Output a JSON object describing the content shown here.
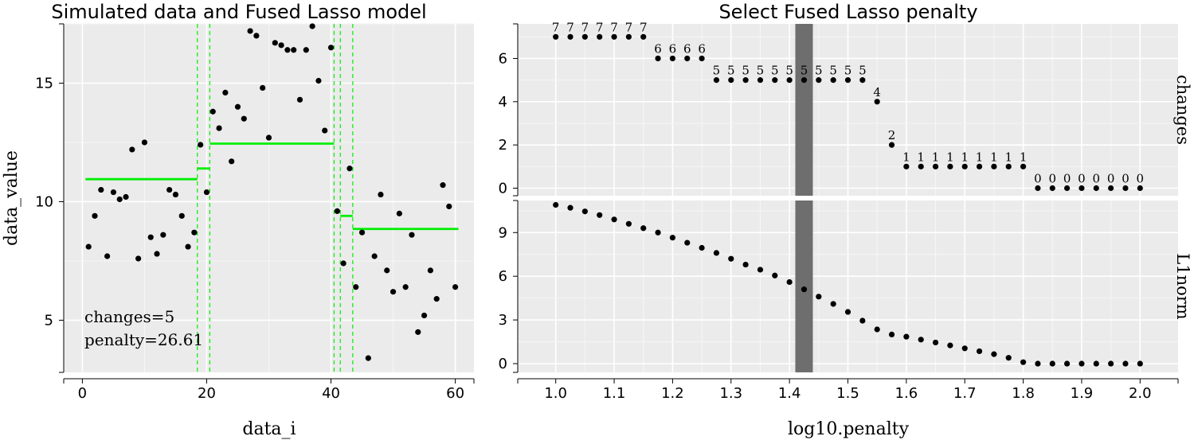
{
  "left_chart": {
    "title": "Simulated data and Fused Lasso model",
    "xlabel": "data_i",
    "ylabel": "data_value",
    "x_ticks": [
      0,
      20,
      40,
      60
    ],
    "y_ticks": [
      5,
      10,
      15
    ],
    "annotation_changes": "changes=5",
    "annotation_penalty": "penalty=26.61"
  },
  "right_chart": {
    "title": "Select Fused Lasso penalty",
    "xlabel": "log10.penalty",
    "x_ticks": [
      "1.0",
      "1.1",
      "1.2",
      "1.3",
      "1.4",
      "1.5",
      "1.6",
      "1.7",
      "1.8",
      "1.9",
      "2.0"
    ],
    "top_facet_label": "changes",
    "bottom_facet_label": "L1norm",
    "top_y_ticks": [
      0,
      2,
      4,
      6
    ],
    "bottom_y_ticks": [
      0,
      3,
      6,
      9
    ]
  },
  "colors": {
    "panel_bg": "#ebebeb",
    "grid_major": "#ffffff",
    "model_line": "#00ee00",
    "points": "#000000",
    "selection_band": "#6e6e6e"
  },
  "chart_data": [
    {
      "type": "scatter",
      "title": "Simulated data and Fused Lasso model",
      "xlabel": "data_i",
      "ylabel": "data_value",
      "xlim": [
        -3,
        63
      ],
      "ylim": [
        2.8,
        17.5
      ],
      "series": [
        {
          "name": "data",
          "x": [
            1,
            2,
            3,
            4,
            5,
            6,
            7,
            8,
            9,
            10,
            11,
            12,
            13,
            14,
            15,
            16,
            17,
            18,
            19,
            20,
            21,
            22,
            23,
            24,
            25,
            26,
            27,
            28,
            29,
            30,
            31,
            32,
            33,
            34,
            35,
            36,
            37,
            38,
            39,
            40,
            41,
            42,
            43,
            44,
            45,
            46,
            47,
            48,
            49,
            50,
            51,
            52,
            53,
            54,
            55,
            56,
            57,
            58,
            59,
            60
          ],
          "y": [
            8.1,
            9.4,
            10.5,
            7.7,
            10.4,
            10.1,
            10.2,
            12.2,
            7.6,
            12.5,
            8.5,
            7.8,
            8.6,
            10.5,
            10.3,
            9.4,
            8.1,
            8.7,
            12.4,
            10.4,
            13.8,
            13.1,
            14.6,
            11.7,
            14.0,
            13.5,
            17.2,
            17.0,
            14.8,
            12.7,
            16.7,
            16.6,
            16.4,
            16.4,
            14.3,
            16.4,
            17.4,
            15.1,
            13.0,
            16.5,
            9.6,
            7.4,
            11.4,
            6.4,
            8.7,
            3.4,
            7.7,
            10.3,
            7.1,
            6.2,
            9.5,
            6.4,
            8.6,
            4.5,
            5.2,
            7.1,
            5.9,
            10.7,
            9.8,
            6.4
          ]
        }
      ],
      "segments": [
        {
          "x_start": 0.5,
          "x_end": 18.5,
          "value": 10.95
        },
        {
          "x_start": 18.5,
          "x_end": 20.5,
          "value": 11.4
        },
        {
          "x_start": 20.5,
          "x_end": 40.5,
          "value": 12.45
        },
        {
          "x_start": 40.5,
          "x_end": 41.5,
          "value": 9.6
        },
        {
          "x_start": 41.5,
          "x_end": 43.5,
          "value": 9.4
        },
        {
          "x_start": 43.5,
          "x_end": 60.5,
          "value": 8.85
        }
      ],
      "changepoints": [
        18.5,
        20.5,
        40.5,
        41.5,
        43.5
      ],
      "changes": 5,
      "penalty": 26.61
    },
    {
      "type": "scatter",
      "title": "Select Fused Lasso penalty",
      "xlabel": "log10.penalty",
      "facet": "changes",
      "xlim": [
        0.935,
        2.065
      ],
      "ylim": [
        -0.35,
        7.6
      ],
      "x": [
        1.0,
        1.025,
        1.05,
        1.075,
        1.1,
        1.125,
        1.15,
        1.175,
        1.2,
        1.225,
        1.25,
        1.275,
        1.3,
        1.325,
        1.35,
        1.375,
        1.4,
        1.425,
        1.45,
        1.475,
        1.5,
        1.525,
        1.55,
        1.575,
        1.6,
        1.625,
        1.65,
        1.675,
        1.7,
        1.725,
        1.75,
        1.775,
        1.8,
        1.825,
        1.85,
        1.875,
        1.9,
        1.925,
        1.95,
        1.975,
        2.0
      ],
      "values": [
        7,
        7,
        7,
        7,
        7,
        7,
        7,
        6,
        6,
        6,
        6,
        5,
        5,
        5,
        5,
        5,
        5,
        5,
        5,
        5,
        5,
        5,
        4,
        2,
        1,
        1,
        1,
        1,
        1,
        1,
        1,
        1,
        1,
        0,
        0,
        0,
        0,
        0,
        0,
        0,
        0
      ],
      "labeled_x": [
        1.0,
        1.025,
        1.05,
        1.075,
        1.1,
        1.125,
        1.15,
        1.175,
        1.2,
        1.225,
        1.25,
        1.275,
        1.3,
        1.325,
        1.35,
        1.375,
        1.4,
        1.425,
        1.45,
        1.475,
        1.5,
        1.525,
        1.55,
        1.575,
        1.6,
        1.625,
        1.65,
        1.675,
        1.7,
        1.725,
        1.75,
        1.775,
        1.8,
        1.825,
        1.85,
        1.875,
        1.9,
        1.925,
        1.95,
        1.975,
        2.0
      ],
      "selected_log10_penalty": 1.425,
      "selected_band": [
        1.41,
        1.44
      ]
    },
    {
      "type": "scatter",
      "title": "Select Fused Lasso penalty",
      "xlabel": "log10.penalty",
      "facet": "L1norm",
      "xlim": [
        0.935,
        2.065
      ],
      "ylim": [
        -0.6,
        11.2
      ],
      "x": [
        1.0,
        1.025,
        1.05,
        1.075,
        1.1,
        1.125,
        1.15,
        1.175,
        1.2,
        1.225,
        1.25,
        1.275,
        1.3,
        1.325,
        1.35,
        1.375,
        1.4,
        1.425,
        1.45,
        1.475,
        1.5,
        1.525,
        1.55,
        1.575,
        1.6,
        1.625,
        1.65,
        1.675,
        1.7,
        1.725,
        1.75,
        1.775,
        1.8,
        1.825,
        1.85,
        1.875,
        1.9,
        1.925,
        1.95,
        1.975,
        2.0
      ],
      "values": [
        10.9,
        10.7,
        10.45,
        10.2,
        9.9,
        9.6,
        9.3,
        9.0,
        8.65,
        8.3,
        7.95,
        7.6,
        7.2,
        6.8,
        6.45,
        6.05,
        5.6,
        5.1,
        4.6,
        4.1,
        3.55,
        2.95,
        2.35,
        2.0,
        1.85,
        1.65,
        1.45,
        1.25,
        1.05,
        0.85,
        0.65,
        0.4,
        0.1,
        0,
        0,
        0,
        0,
        0,
        0,
        0,
        0
      ],
      "selected_log10_penalty": 1.425,
      "selected_band": [
        1.41,
        1.44
      ]
    }
  ]
}
